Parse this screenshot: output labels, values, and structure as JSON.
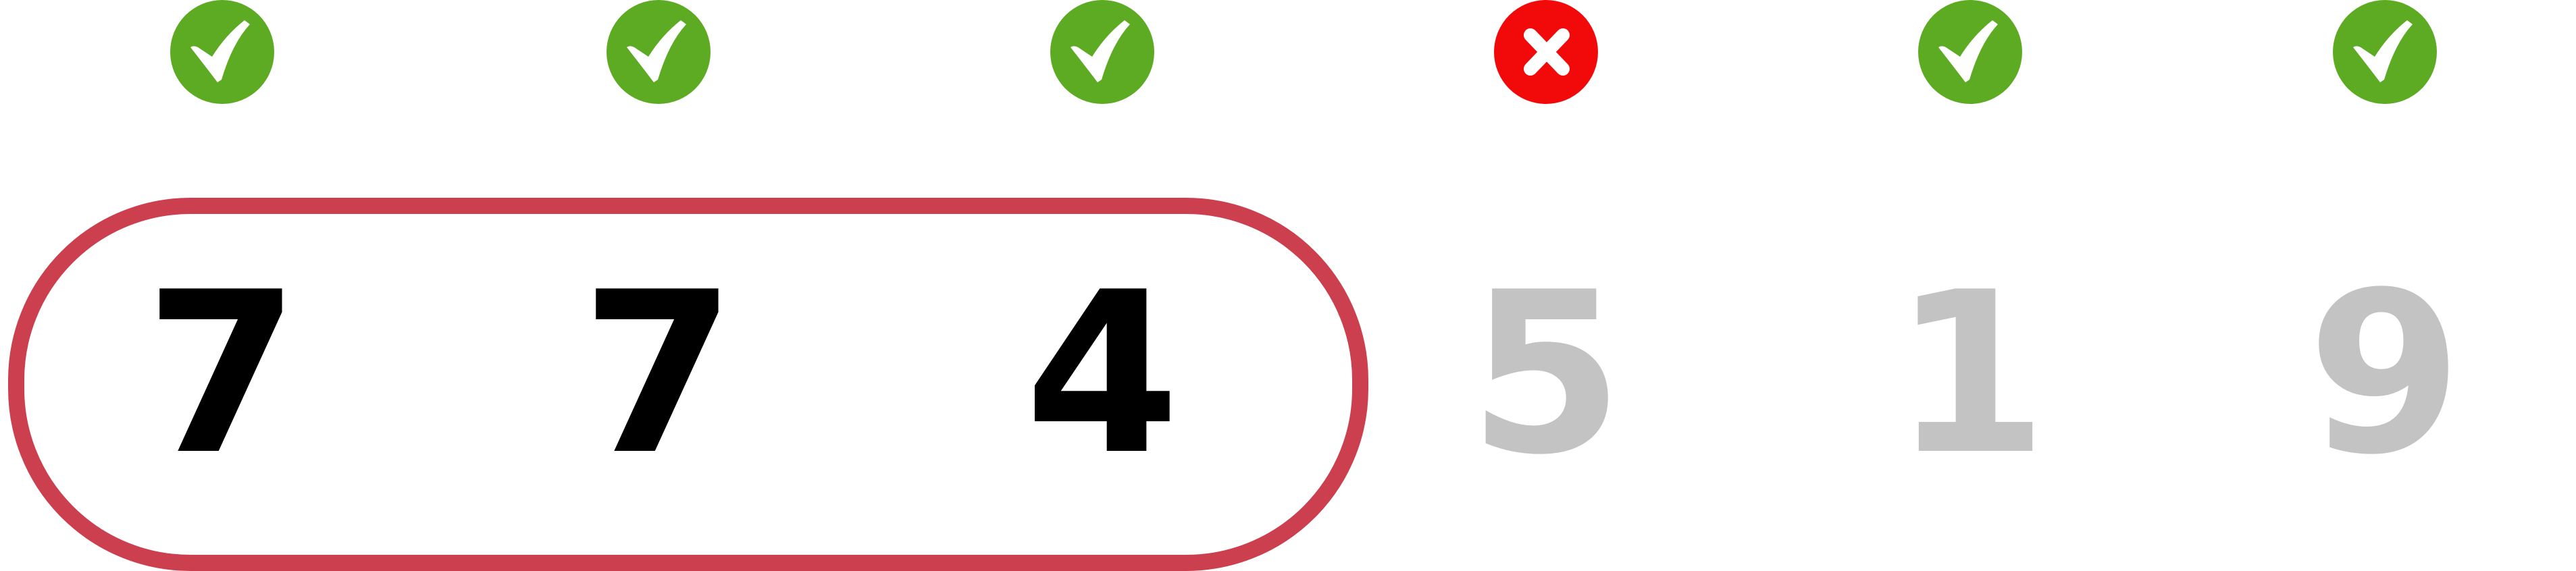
{
  "colors": {
    "correct": "#5dab23",
    "incorrect": "#f20a0a",
    "selection_outline": "#cc3f4e",
    "selected_digit": "#000000",
    "unselected_digit": "#c3c3c3"
  },
  "digits": [
    {
      "value": "7",
      "status": "correct",
      "status_icon": "check-icon",
      "selected": true
    },
    {
      "value": "7",
      "status": "correct",
      "status_icon": "check-icon",
      "selected": true
    },
    {
      "value": "4",
      "status": "correct",
      "status_icon": "check-icon",
      "selected": true
    },
    {
      "value": "5",
      "status": "incorrect",
      "status_icon": "cross-icon",
      "selected": false
    },
    {
      "value": "1",
      "status": "correct",
      "status_icon": "check-icon",
      "selected": false
    },
    {
      "value": "9",
      "status": "correct",
      "status_icon": "check-icon",
      "selected": false
    }
  ]
}
